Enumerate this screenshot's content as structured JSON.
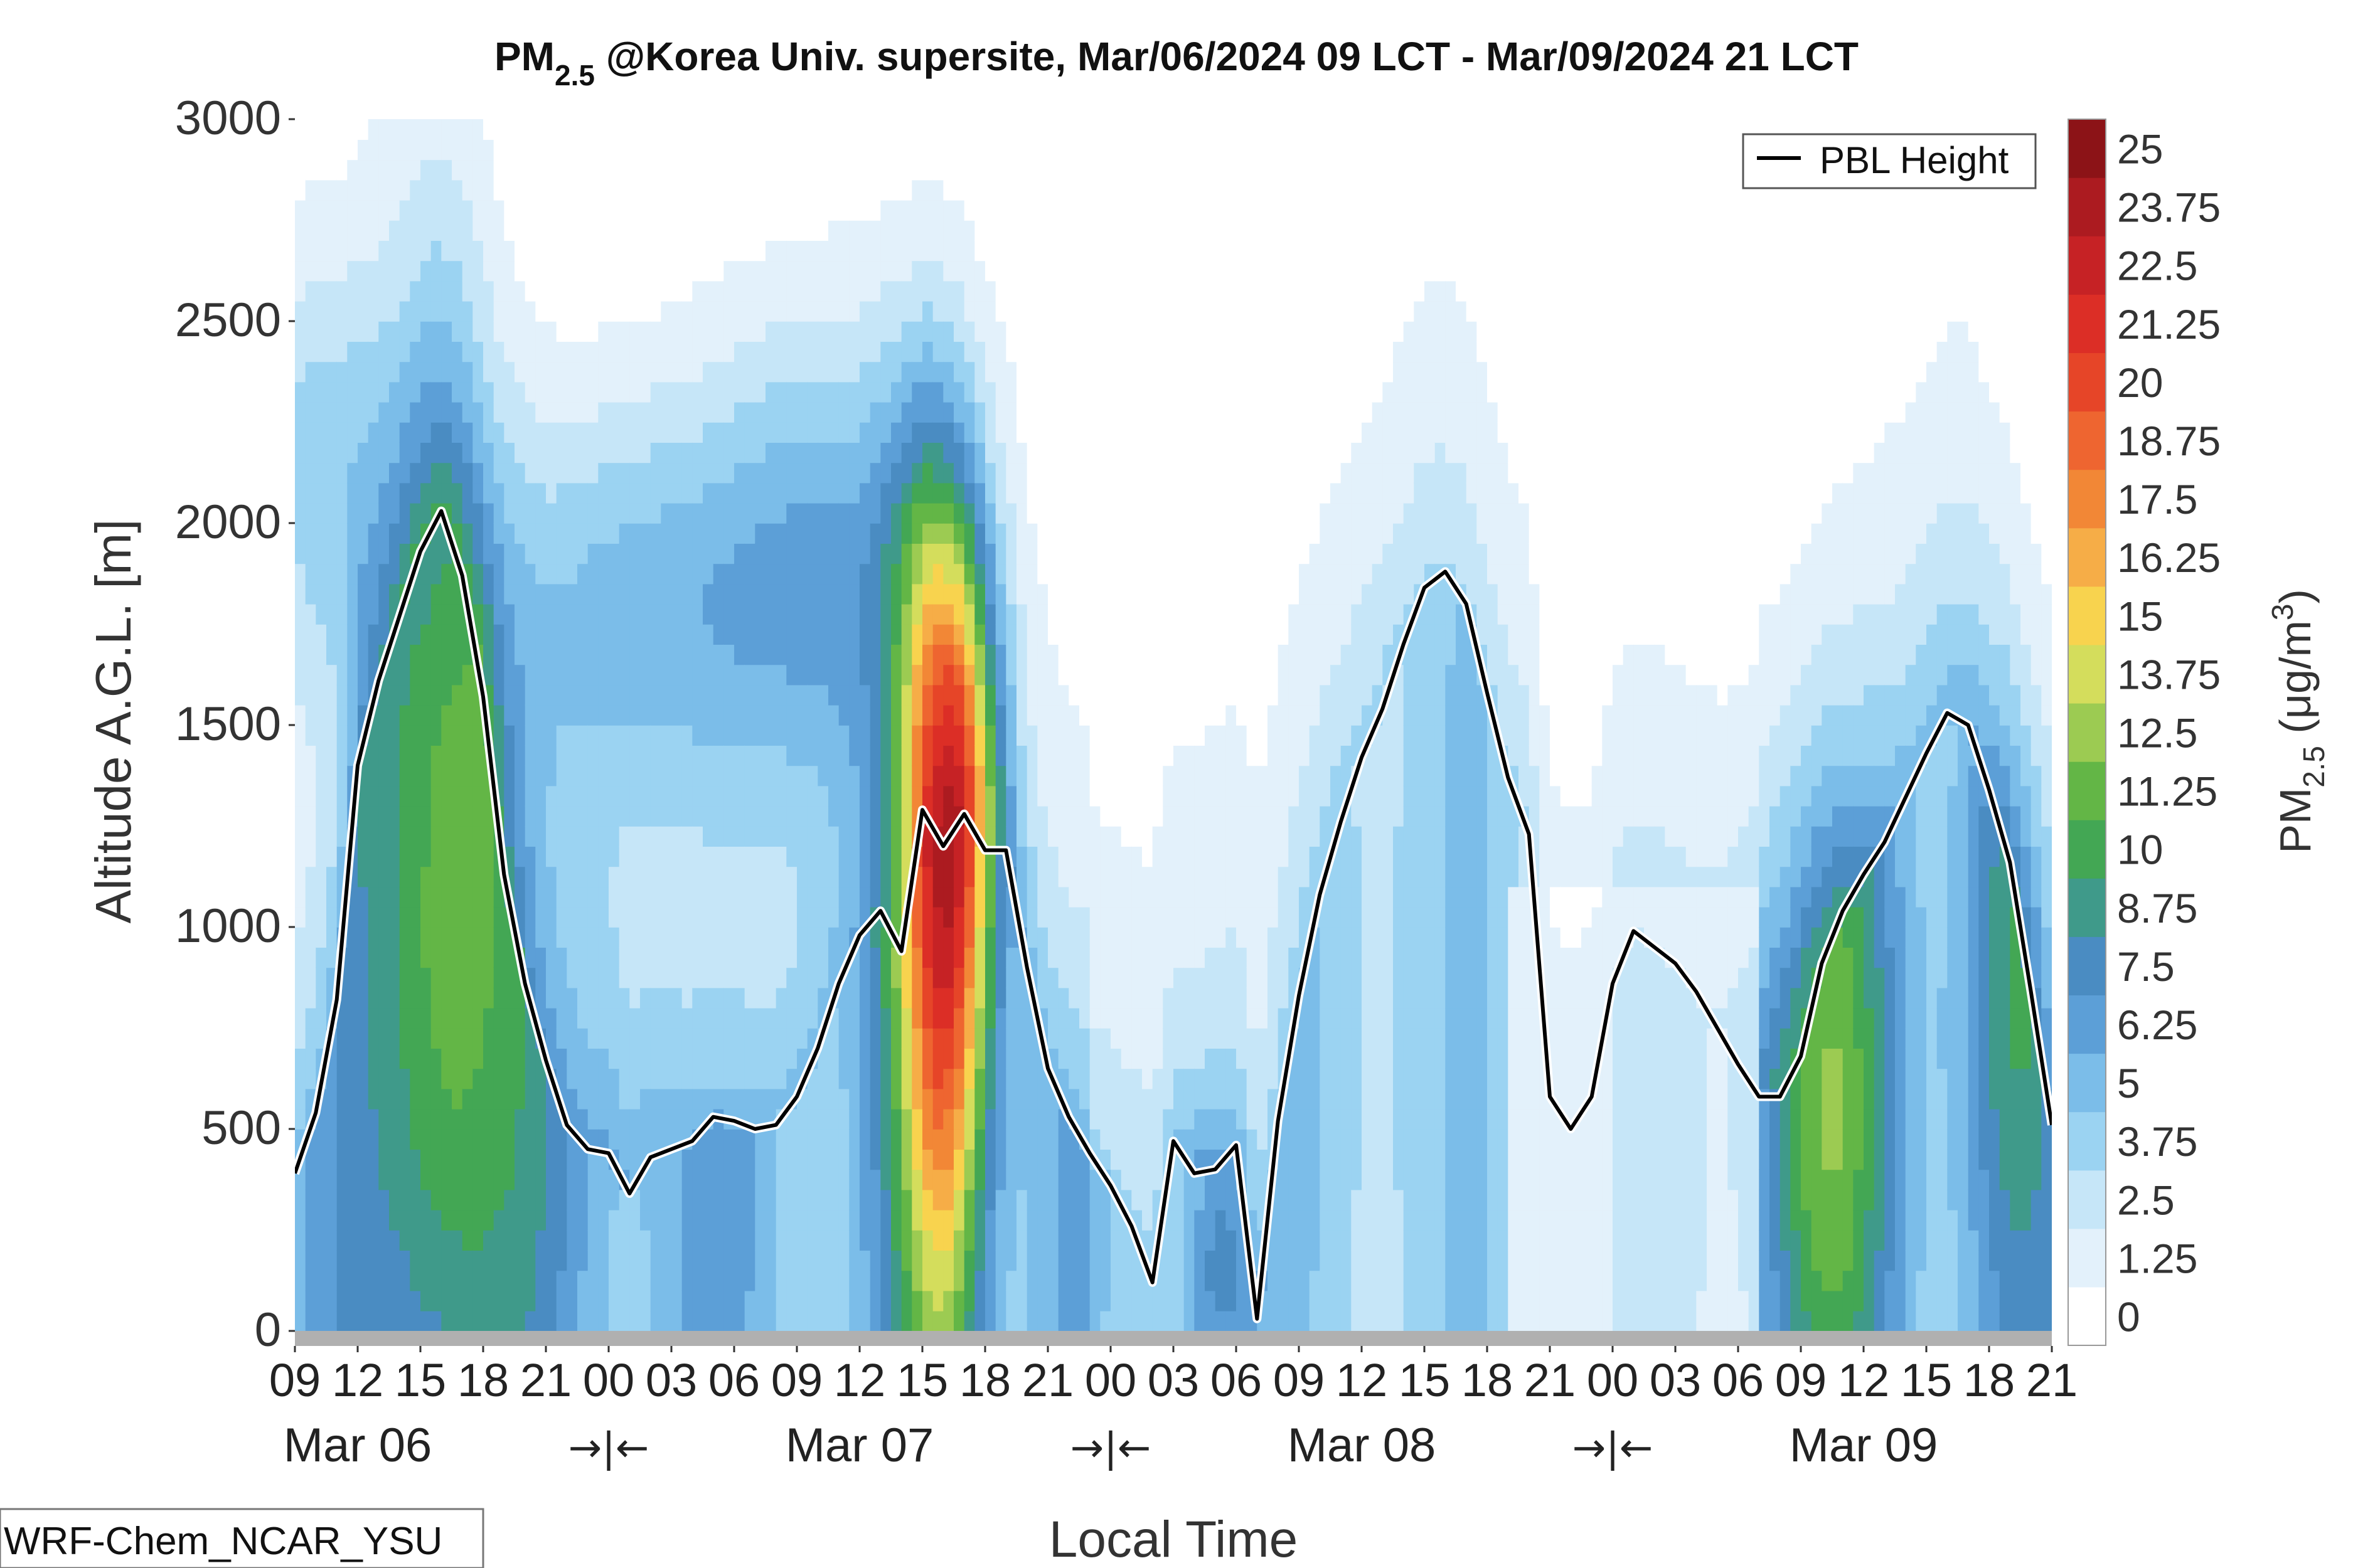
{
  "title_parts": {
    "pm": "PM",
    "pm_sub": "2.5",
    "rest": " @Korea Univ. supersite, Mar/06/2024 09 LCT - Mar/09/2024 21 LCT"
  },
  "ylabel": "Altitude A.G.L. [m]",
  "xlabel": "Local Time",
  "colorbar_label": {
    "pm": "PM",
    "pm_sub": "2.5",
    "units_open": " (μg/m",
    "units_sup": "3",
    "units_close": ")"
  },
  "legend": {
    "pbl": "PBL Height"
  },
  "watermark": "WRF-Chem_NCAR_YSU",
  "date_labels": [
    "Mar 06",
    "Mar 07",
    "Mar 08",
    "Mar 09"
  ],
  "night_marker": "→|←",
  "colors": {
    "pbl_line": "#000000",
    "ground": "#b0b0b0"
  },
  "chart_data": {
    "type": "heatmap",
    "x_tick_labels": [
      "09",
      "12",
      "15",
      "18",
      "21",
      "00",
      "03",
      "06",
      "09",
      "12",
      "15",
      "18",
      "21",
      "00",
      "03",
      "06",
      "09",
      "12",
      "15",
      "18",
      "21",
      "00",
      "03",
      "06",
      "09",
      "12",
      "15",
      "18",
      "21"
    ],
    "x_hours_range": [
      0,
      84
    ],
    "ylim": [
      0,
      3000
    ],
    "y_ticks": [
      0,
      500,
      1000,
      1500,
      2000,
      2500,
      3000
    ],
    "colorbar": {
      "levels": [
        0,
        1.25,
        2.5,
        3.75,
        5,
        6.25,
        7.5,
        8.75,
        10,
        11.25,
        12.5,
        13.75,
        15,
        16.25,
        17.5,
        18.75,
        20,
        21.25,
        22.5,
        23.75,
        25
      ],
      "tick_labels": [
        "0",
        "1.25",
        "2.5",
        "3.75",
        "5",
        "6.25",
        "7.5",
        "8.75",
        "10",
        "11.25",
        "12.5",
        "13.75",
        "15",
        "16.25",
        "17.5",
        "18.75",
        "20",
        "21.25",
        "22.5",
        "23.75",
        "25"
      ],
      "colors": [
        "#ffffff",
        "#e3f1fb",
        "#c6e6f8",
        "#9bd3f2",
        "#7bbde9",
        "#5c9fd7",
        "#4a8cc2",
        "#3f9a8a",
        "#43a754",
        "#63b646",
        "#9ccb52",
        "#d4dd5c",
        "#f8d34e",
        "#f6ad47",
        "#f28736",
        "#ee6530",
        "#e64528",
        "#dc2e26",
        "#c62225",
        "#ac1b20",
        "#8c1317"
      ]
    },
    "pbl_height": {
      "hours": [
        0,
        1,
        2,
        3,
        4,
        5,
        6,
        7,
        8,
        9,
        10,
        11,
        12,
        13,
        14,
        15,
        16,
        17,
        18,
        19,
        20,
        21,
        22,
        23,
        24,
        25,
        26,
        27,
        28,
        29,
        30,
        31,
        32,
        33,
        34,
        35,
        36,
        37,
        38,
        39,
        40,
        41,
        42,
        43,
        44,
        45,
        46,
        47,
        48,
        49,
        50,
        51,
        52,
        53,
        54,
        55,
        56,
        57,
        58,
        59,
        60,
        61,
        62,
        63,
        64,
        65,
        66,
        67,
        68,
        69,
        70,
        71,
        72,
        73,
        74,
        75,
        76,
        77,
        78,
        79,
        80,
        81,
        82,
        83,
        84
      ],
      "values": [
        390,
        540,
        820,
        1400,
        1610,
        1770,
        1930,
        2030,
        1870,
        1570,
        1130,
        860,
        670,
        510,
        450,
        440,
        340,
        430,
        450,
        470,
        530,
        520,
        500,
        510,
        580,
        700,
        860,
        980,
        1040,
        940,
        1290,
        1200,
        1280,
        1190,
        1190,
        900,
        650,
        530,
        440,
        360,
        260,
        120,
        470,
        390,
        400,
        460,
        30,
        520,
        830,
        1080,
        1260,
        1420,
        1540,
        1700,
        1840,
        1880,
        1800,
        1580,
        1370,
        1230,
        580,
        500,
        580,
        860,
        990,
        950,
        910,
        840,
        750,
        660,
        580,
        580,
        680,
        910,
        1040,
        1130,
        1210,
        1320,
        1430,
        1530,
        1500,
        1340,
        1160,
        840,
        510
      ]
    },
    "legend_position": "top-right",
    "grid": false
  }
}
